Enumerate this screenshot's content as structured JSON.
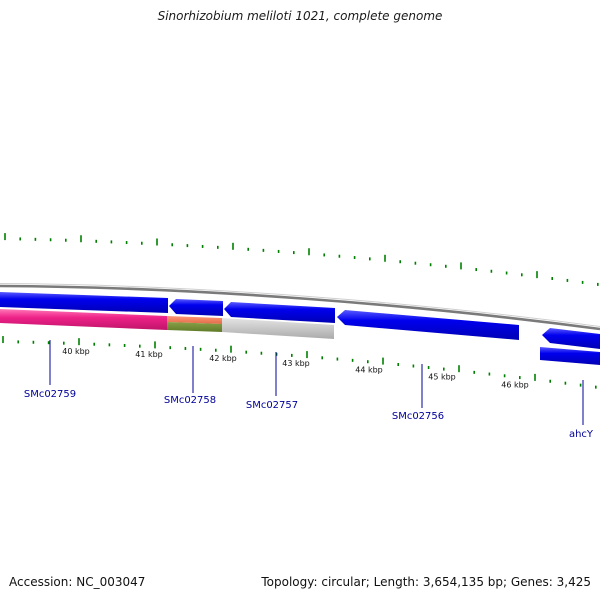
{
  "title": "Sinorhizobium meliloti 1021, complete genome",
  "footer": {
    "accession": "Accession: NC_003047",
    "summary": "Topology: circular; Length: 3,654,135 bp; Genes: 3,425"
  },
  "scale": {
    "unit": "kbp",
    "ticks": [
      "40 kbp",
      "41 kbp",
      "42 kbp",
      "43 kbp",
      "44 kbp",
      "45 kbp",
      "46 kbp"
    ]
  },
  "genes": [
    {
      "label": "SMc02759",
      "strand": "forward",
      "color": "#0000ee",
      "product_color": "#ee2288"
    },
    {
      "label": "SMc02758",
      "strand": "reverse",
      "color": "#0000ee",
      "product_color": "#ee7755"
    },
    {
      "label": "SMc02757",
      "strand": "reverse",
      "color": "#0000ee",
      "product_color": "#bbbbbb"
    },
    {
      "label": "SMc02756",
      "strand": "reverse",
      "color": "#0000ee",
      "product_color": null
    },
    {
      "label": "ahcY",
      "strand": "reverse",
      "color": "#0000ee",
      "product_color": null
    }
  ],
  "colors": {
    "gene_forward": "#0000ee",
    "backbone": "#888888",
    "gc_ticks": "#008000",
    "label_text": "#000099"
  }
}
